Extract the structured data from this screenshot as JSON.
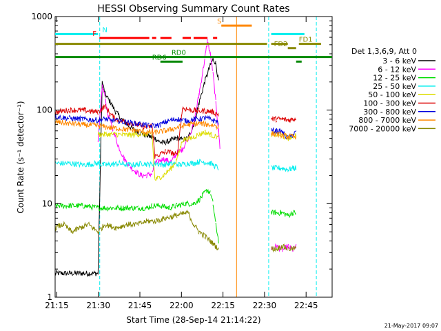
{
  "chart_data": {
    "type": "line",
    "title": "HESSI Observing Summary Count Rates",
    "xlabel": "Start Time (28-Sep-14 21:14:22)",
    "ylabel": "Count Rate (s⁻¹ detector⁻¹)",
    "yscale": "log",
    "xlim": [
      0,
      100
    ],
    "ylim": [
      1,
      1000
    ],
    "x_ticks": [
      {
        "v": 0.6,
        "label": "21:15"
      },
      {
        "v": 15.6,
        "label": "21:30"
      },
      {
        "v": 30.6,
        "label": "21:45"
      },
      {
        "v": 45.6,
        "label": "22:00"
      },
      {
        "v": 60.6,
        "label": "22:15"
      },
      {
        "v": 75.6,
        "label": "22:30"
      },
      {
        "v": 90.6,
        "label": "22:45"
      }
    ],
    "y_ticks": [
      {
        "v": 1,
        "label": "1"
      },
      {
        "v": 10,
        "label": "10"
      },
      {
        "v": 100,
        "label": "100"
      },
      {
        "v": 1000,
        "label": "1000"
      }
    ],
    "legend_title": "Det 1,3,6,9, Att 0",
    "legend_position": "right",
    "series": [
      {
        "name": "3 - 6 keV",
        "color": "#000000",
        "points": [
          [
            0,
            1.8
          ],
          [
            15.5,
            1.8
          ],
          [
            17,
            200
          ],
          [
            18,
            150
          ],
          [
            20,
            120
          ],
          [
            22,
            95
          ],
          [
            24,
            80
          ],
          [
            26,
            70
          ],
          [
            29,
            60
          ],
          [
            32,
            55
          ],
          [
            36,
            50
          ],
          [
            38,
            45
          ],
          [
            40,
            45
          ],
          [
            42,
            48
          ],
          [
            44,
            50
          ],
          [
            46,
            48
          ],
          [
            48,
            50
          ],
          [
            50,
            70
          ],
          [
            52,
            120
          ],
          [
            54,
            200
          ],
          [
            56,
            300
          ],
          [
            57,
            350
          ],
          [
            58,
            320
          ],
          [
            59,
            200
          ]
        ]
      },
      {
        "name": "6 - 12 keV",
        "color": "#ff00ff",
        "points": [
          [
            15.5,
            45
          ],
          [
            17,
            180
          ],
          [
            18,
            140
          ],
          [
            19,
            90
          ],
          [
            21,
            60
          ],
          [
            23,
            40
          ],
          [
            25,
            30
          ],
          [
            27,
            25
          ],
          [
            29,
            22
          ],
          [
            31,
            20
          ],
          [
            33,
            20
          ],
          [
            35,
            21
          ],
          [
            36,
            27
          ],
          [
            39,
            30
          ],
          [
            42,
            28
          ],
          [
            44,
            35
          ],
          [
            46,
            38
          ],
          [
            48,
            50
          ],
          [
            50,
            70
          ],
          [
            52,
            150
          ],
          [
            54,
            350
          ],
          [
            55,
            550
          ],
          [
            56,
            400
          ],
          [
            57,
            250
          ],
          [
            58,
            120
          ],
          [
            59,
            60
          ],
          [
            59.5,
            40
          ],
          [
            78,
            3.3
          ],
          [
            80,
            3.5
          ],
          [
            82,
            3.2
          ],
          [
            84,
            3.5
          ],
          [
            86,
            3.2
          ],
          [
            87,
            3.5
          ]
        ]
      },
      {
        "name": "12 - 25 keV",
        "color": "#00dd00",
        "points": [
          [
            0,
            9.5
          ],
          [
            5,
            9.5
          ],
          [
            10,
            9.5
          ],
          [
            15.5,
            9
          ],
          [
            18,
            9
          ],
          [
            22,
            9
          ],
          [
            25,
            9
          ],
          [
            30,
            9
          ],
          [
            33,
            9
          ],
          [
            35,
            9.5
          ],
          [
            38,
            9.5
          ],
          [
            41,
            9
          ],
          [
            44,
            9.5
          ],
          [
            47,
            10
          ],
          [
            50,
            10
          ],
          [
            52,
            11
          ],
          [
            54,
            13
          ],
          [
            55,
            14
          ],
          [
            56,
            13
          ],
          [
            57,
            10
          ],
          [
            58,
            6
          ],
          [
            59,
            4
          ],
          [
            78,
            8
          ],
          [
            80,
            8
          ],
          [
            82,
            8
          ],
          [
            84,
            7.5
          ],
          [
            86,
            8
          ],
          [
            87,
            8
          ]
        ]
      },
      {
        "name": "25 - 50 keV",
        "color": "#00eeee",
        "points": [
          [
            0,
            27
          ],
          [
            5,
            27
          ],
          [
            10,
            26
          ],
          [
            15.5,
            27
          ],
          [
            17,
            26
          ],
          [
            20,
            26
          ],
          [
            23,
            27
          ],
          [
            26,
            26
          ],
          [
            29,
            26
          ],
          [
            32,
            27
          ],
          [
            34,
            26
          ],
          [
            36,
            27
          ],
          [
            39,
            26
          ],
          [
            42,
            27
          ],
          [
            45,
            26
          ],
          [
            48,
            27
          ],
          [
            50,
            27
          ],
          [
            52,
            28
          ],
          [
            54,
            28
          ],
          [
            56,
            27
          ],
          [
            58,
            25
          ],
          [
            59,
            24
          ],
          [
            78,
            24
          ],
          [
            80,
            24
          ],
          [
            82,
            24
          ],
          [
            84,
            23
          ],
          [
            86,
            24
          ],
          [
            87,
            24
          ]
        ]
      },
      {
        "name": "50 - 100 keV",
        "color": "#dddd00",
        "points": [
          [
            15.5,
            55
          ],
          [
            18,
            55
          ],
          [
            22,
            55
          ],
          [
            26,
            54
          ],
          [
            30,
            55
          ],
          [
            33,
            55
          ],
          [
            35,
            55
          ],
          [
            36,
            18
          ],
          [
            39,
            20
          ],
          [
            42,
            24
          ],
          [
            44,
            30
          ],
          [
            46,
            48
          ],
          [
            49,
            50
          ],
          [
            52,
            55
          ],
          [
            54,
            58
          ],
          [
            56,
            55
          ],
          [
            58,
            52
          ],
          [
            59,
            50
          ],
          [
            78,
            55
          ],
          [
            80,
            55
          ],
          [
            82,
            53
          ],
          [
            84,
            50
          ],
          [
            86,
            52
          ],
          [
            87,
            55
          ]
        ]
      },
      {
        "name": "100 - 300 keV",
        "color": "#dd0000",
        "points": [
          [
            0,
            95
          ],
          [
            5,
            100
          ],
          [
            10,
            100
          ],
          [
            15.5,
            95
          ],
          [
            18,
            110
          ],
          [
            20,
            90
          ],
          [
            22,
            80
          ],
          [
            25,
            75
          ],
          [
            28,
            72
          ],
          [
            31,
            68
          ],
          [
            33,
            65
          ],
          [
            35,
            68
          ],
          [
            36,
            32
          ],
          [
            38,
            34
          ],
          [
            40,
            36
          ],
          [
            42,
            35
          ],
          [
            44,
            33
          ],
          [
            46,
            105
          ],
          [
            49,
            100
          ],
          [
            52,
            98
          ],
          [
            55,
            98
          ],
          [
            57,
            95
          ],
          [
            59,
            90
          ],
          [
            78,
            80
          ],
          [
            80,
            80
          ],
          [
            82,
            80
          ],
          [
            84,
            78
          ],
          [
            86,
            80
          ],
          [
            87,
            82
          ]
        ]
      },
      {
        "name": "300 - 800 keV",
        "color": "#0000dd",
        "points": [
          [
            0,
            85
          ],
          [
            5,
            82
          ],
          [
            10,
            80
          ],
          [
            15.5,
            78
          ],
          [
            18,
            80
          ],
          [
            20,
            78
          ],
          [
            23,
            76
          ],
          [
            26,
            74
          ],
          [
            29,
            72
          ],
          [
            32,
            70
          ],
          [
            34,
            68
          ],
          [
            36,
            68
          ],
          [
            38,
            70
          ],
          [
            40,
            75
          ],
          [
            42,
            78
          ],
          [
            44,
            80
          ],
          [
            46,
            78
          ],
          [
            48,
            76
          ],
          [
            50,
            80
          ],
          [
            52,
            80
          ],
          [
            54,
            82
          ],
          [
            56,
            80
          ],
          [
            58,
            76
          ],
          [
            59,
            74
          ],
          [
            78,
            60
          ],
          [
            80,
            60
          ],
          [
            82,
            58
          ],
          [
            84,
            50
          ],
          [
            86,
            55
          ],
          [
            87,
            58
          ]
        ]
      },
      {
        "name": "800 - 7000 keV",
        "color": "#ff8800",
        "points": [
          [
            0,
            75
          ],
          [
            5,
            72
          ],
          [
            10,
            70
          ],
          [
            15.5,
            68
          ],
          [
            18,
            66
          ],
          [
            22,
            64
          ],
          [
            26,
            62
          ],
          [
            30,
            60
          ],
          [
            33,
            58
          ],
          [
            36,
            58
          ],
          [
            40,
            60
          ],
          [
            44,
            65
          ],
          [
            48,
            70
          ],
          [
            52,
            72
          ],
          [
            55,
            70
          ],
          [
            58,
            68
          ],
          [
            59,
            66
          ],
          [
            78,
            56
          ],
          [
            80,
            55
          ],
          [
            82,
            54
          ],
          [
            84,
            52
          ],
          [
            86,
            52
          ],
          [
            87,
            53
          ]
        ]
      },
      {
        "name": "7000 - 20000 keV",
        "color": "#888800",
        "points": [
          [
            0,
            5.5
          ],
          [
            3,
            6
          ],
          [
            6,
            5
          ],
          [
            9,
            5.5
          ],
          [
            12,
            6
          ],
          [
            15.5,
            5
          ],
          [
            18,
            6
          ],
          [
            22,
            5.5
          ],
          [
            26,
            6
          ],
          [
            30,
            6
          ],
          [
            33,
            6.5
          ],
          [
            36,
            6.5
          ],
          [
            40,
            7
          ],
          [
            44,
            7.5
          ],
          [
            48,
            8
          ],
          [
            50,
            6
          ],
          [
            52,
            5
          ],
          [
            54,
            4.5
          ],
          [
            56,
            4
          ],
          [
            58,
            3.5
          ],
          [
            59,
            3.3
          ],
          [
            78,
            3.3
          ],
          [
            80,
            3.3
          ],
          [
            82,
            3.5
          ],
          [
            84,
            3.3
          ],
          [
            86,
            3.3
          ],
          [
            87,
            3.3
          ]
        ]
      }
    ],
    "flags": [
      {
        "label": "N",
        "color": "#00eeee",
        "segments": [
          [
            0,
            15.5
          ],
          [
            78,
            90
          ]
        ],
        "level": 650,
        "label_at": 17
      },
      {
        "label": "S",
        "color": "#ff8800",
        "segments": [
          [
            60,
            71
          ]
        ],
        "level": 800,
        "label_at": 58.5
      },
      {
        "label": "F",
        "color": "#ff0000",
        "segments": [
          [
            16,
            34
          ],
          [
            35,
            36.5
          ],
          [
            38,
            42
          ],
          [
            46,
            49
          ],
          [
            50,
            55
          ],
          [
            57,
            58.5
          ]
        ],
        "level": 590,
        "label_at": 13.5
      },
      {
        "label": "FD1",
        "color": "#888800",
        "segments": [
          [
            0,
            76.5
          ],
          [
            78,
            84
          ],
          [
            88,
            96
          ]
        ],
        "level": 510,
        "label_at": 88
      },
      {
        "label": "FD2",
        "color": "#888800",
        "segments": [
          [
            84,
            87
          ]
        ],
        "level": 460,
        "label_at": 79
      },
      {
        "label": "RD0",
        "color": "#008800",
        "segments": [
          [
            0,
            100
          ]
        ],
        "level": 370,
        "label_at": 42
      },
      {
        "label": "RD6",
        "color": "#008800",
        "segments": [
          [
            38,
            46
          ],
          [
            87,
            89
          ]
        ],
        "level": 330,
        "label_at": 35
      }
    ],
    "vlines": [
      {
        "x": 0,
        "color": "#00eeee",
        "style": "dashed"
      },
      {
        "x": 16.1,
        "color": "#00eeee",
        "style": "dashed"
      },
      {
        "x": 65.5,
        "color": "#ff8800",
        "style": "solid"
      },
      {
        "x": 77.1,
        "color": "#00eeee",
        "style": "dashed"
      },
      {
        "x": 94.3,
        "color": "#00eeee",
        "style": "dashed"
      }
    ],
    "gaps": [
      [
        60,
        77
      ]
    ]
  },
  "footer": {
    "timestamp": "21-May-2017 09:07"
  }
}
